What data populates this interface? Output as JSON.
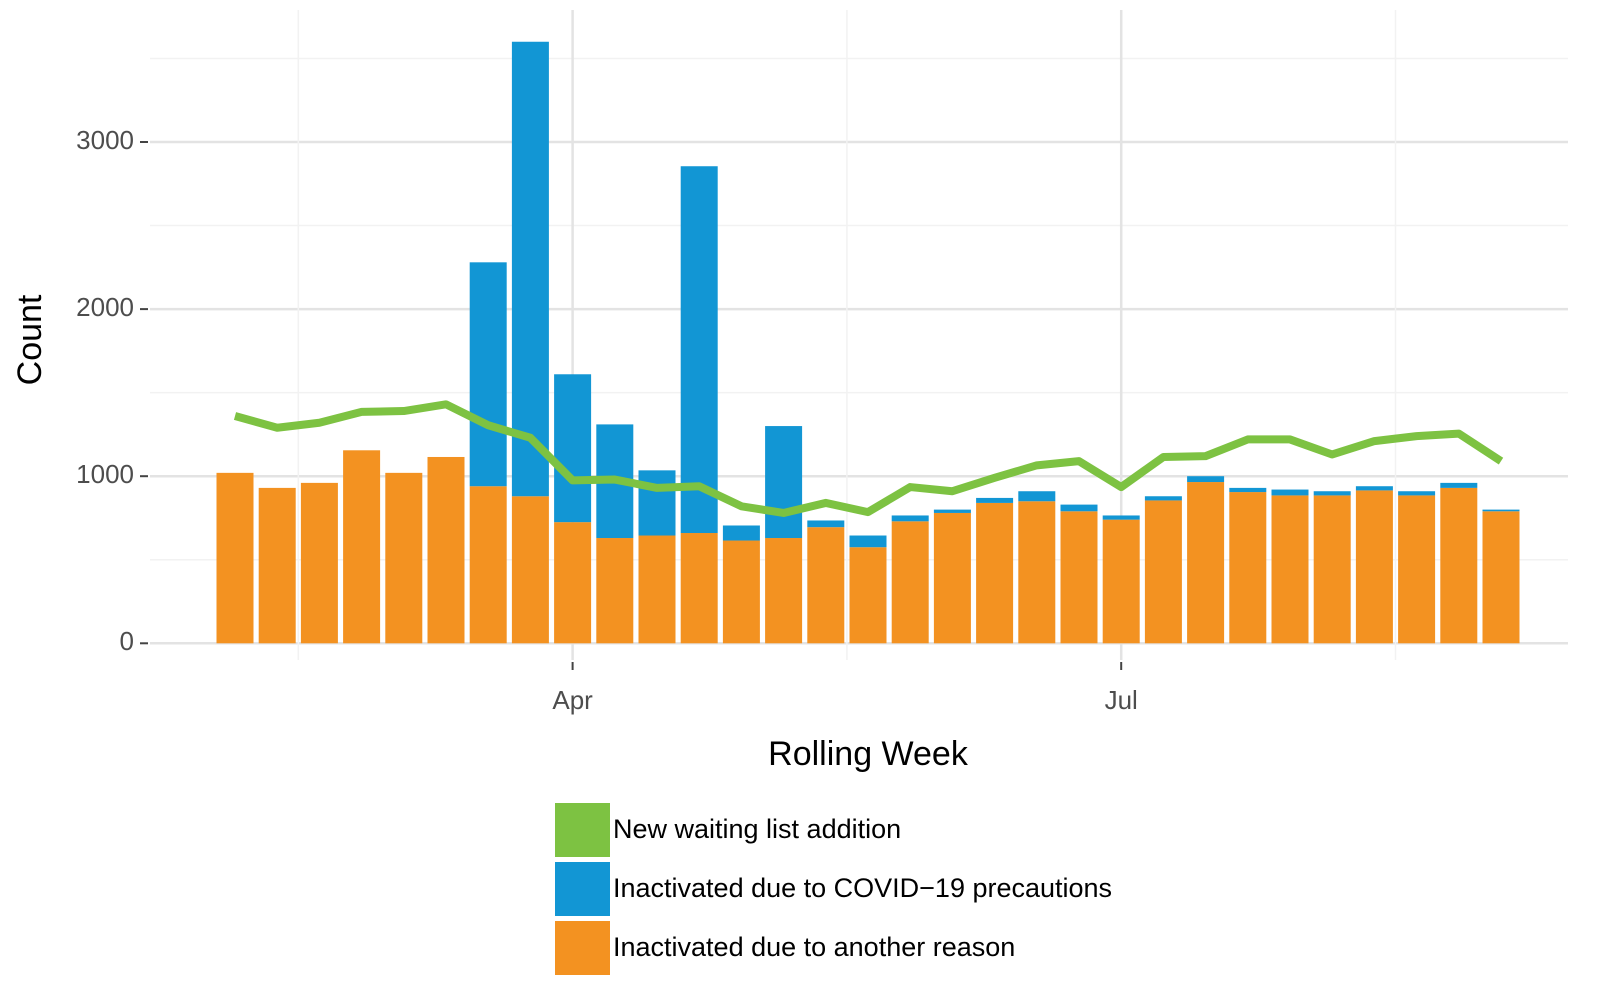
{
  "chart_data": {
    "type": "bar",
    "xlabel": "Rolling Week",
    "ylabel": "Count",
    "categories": [
      null,
      null,
      null,
      null,
      null,
      null,
      null,
      null,
      "Apr",
      null,
      null,
      null,
      null,
      null,
      null,
      null,
      null,
      null,
      null,
      null,
      null,
      "Jul",
      null,
      null,
      null,
      null,
      null,
      null,
      null,
      null,
      null
    ],
    "series": [
      {
        "name": "New waiting list addition",
        "type": "line",
        "color": "#7dc242",
        "values": [
          1360,
          1290,
          1320,
          1385,
          1390,
          1430,
          1305,
          1230,
          975,
          980,
          930,
          940,
          820,
          780,
          840,
          785,
          935,
          910,
          990,
          1065,
          1090,
          935,
          1115,
          1120,
          1220,
          1220,
          1130,
          1210,
          1240,
          1255,
          1090
        ]
      },
      {
        "name": "Inactivated due to COVID−19 precautions",
        "type": "bar",
        "color": "#1296d4",
        "values": [
          0,
          0,
          0,
          0,
          0,
          0,
          1340,
          2720,
          885,
          680,
          390,
          2195,
          90,
          670,
          40,
          70,
          35,
          20,
          30,
          60,
          40,
          25,
          25,
          35,
          25,
          35,
          25,
          25,
          25,
          30,
          10
        ]
      },
      {
        "name": "Inactivated due to another reason",
        "type": "bar",
        "color": "#f39221",
        "values": [
          1020,
          930,
          960,
          1155,
          1020,
          1115,
          940,
          880,
          725,
          630,
          645,
          660,
          615,
          630,
          695,
          575,
          730,
          780,
          840,
          850,
          790,
          740,
          855,
          965,
          905,
          885,
          885,
          915,
          885,
          930,
          790
        ]
      }
    ],
    "ylim": [
      -100,
      3790
    ],
    "yticks": [
      0,
      1000,
      2000,
      3000
    ],
    "grid": true,
    "legend": "bottom"
  }
}
